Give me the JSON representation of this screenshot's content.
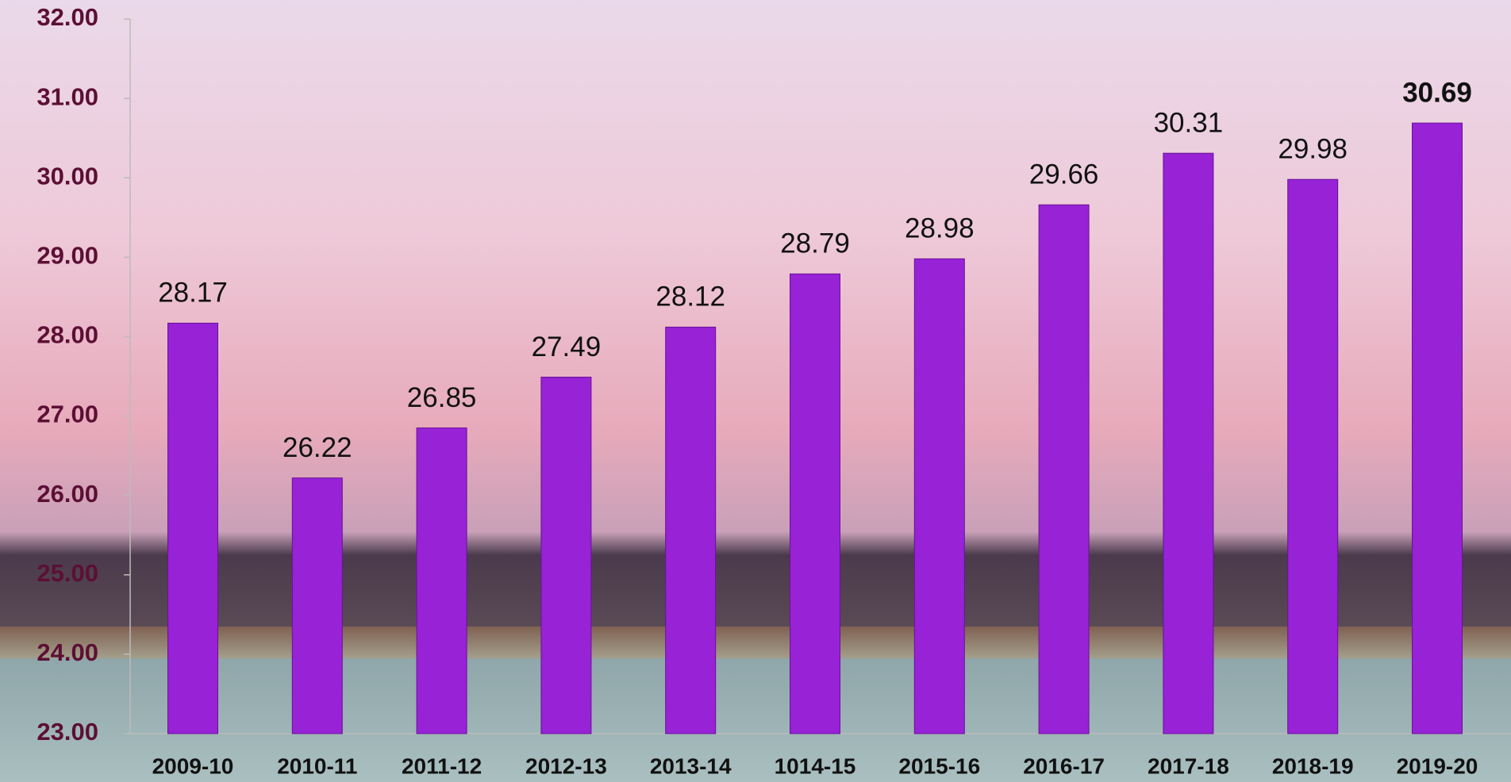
{
  "chart_data": {
    "type": "bar",
    "categories": [
      "2009-10",
      "2010-11",
      "2011-12",
      "2012-13",
      "2013-14",
      "1014-15",
      "2015-16",
      "2016-17",
      "2017-18",
      "2018-19",
      "2019-20"
    ],
    "values": [
      28.17,
      26.22,
      26.85,
      27.49,
      28.12,
      28.79,
      28.98,
      29.66,
      30.31,
      29.98,
      30.69
    ],
    "color": "#9722d6",
    "value_label_colors": [
      "#111111",
      "#111111",
      "#111111",
      "#111111",
      "#111111",
      "#111111",
      "#111111",
      "#111111",
      "#111111",
      "#111111",
      "#ff1a1a"
    ],
    "ylim": [
      23,
      32
    ],
    "yticks": [
      {
        "value": 23,
        "label": "23.00"
      },
      {
        "value": 24,
        "label": "24.00"
      },
      {
        "value": 25,
        "label": "25.00"
      },
      {
        "value": 26,
        "label": "26.00"
      },
      {
        "value": 27,
        "label": "27.00"
      },
      {
        "value": 28,
        "label": "28.00"
      },
      {
        "value": 29,
        "label": "29.00"
      },
      {
        "value": 30,
        "label": "30.00"
      },
      {
        "value": 31,
        "label": "31.00"
      },
      {
        "value": 32,
        "label": "32.00"
      }
    ],
    "grid": false
  }
}
